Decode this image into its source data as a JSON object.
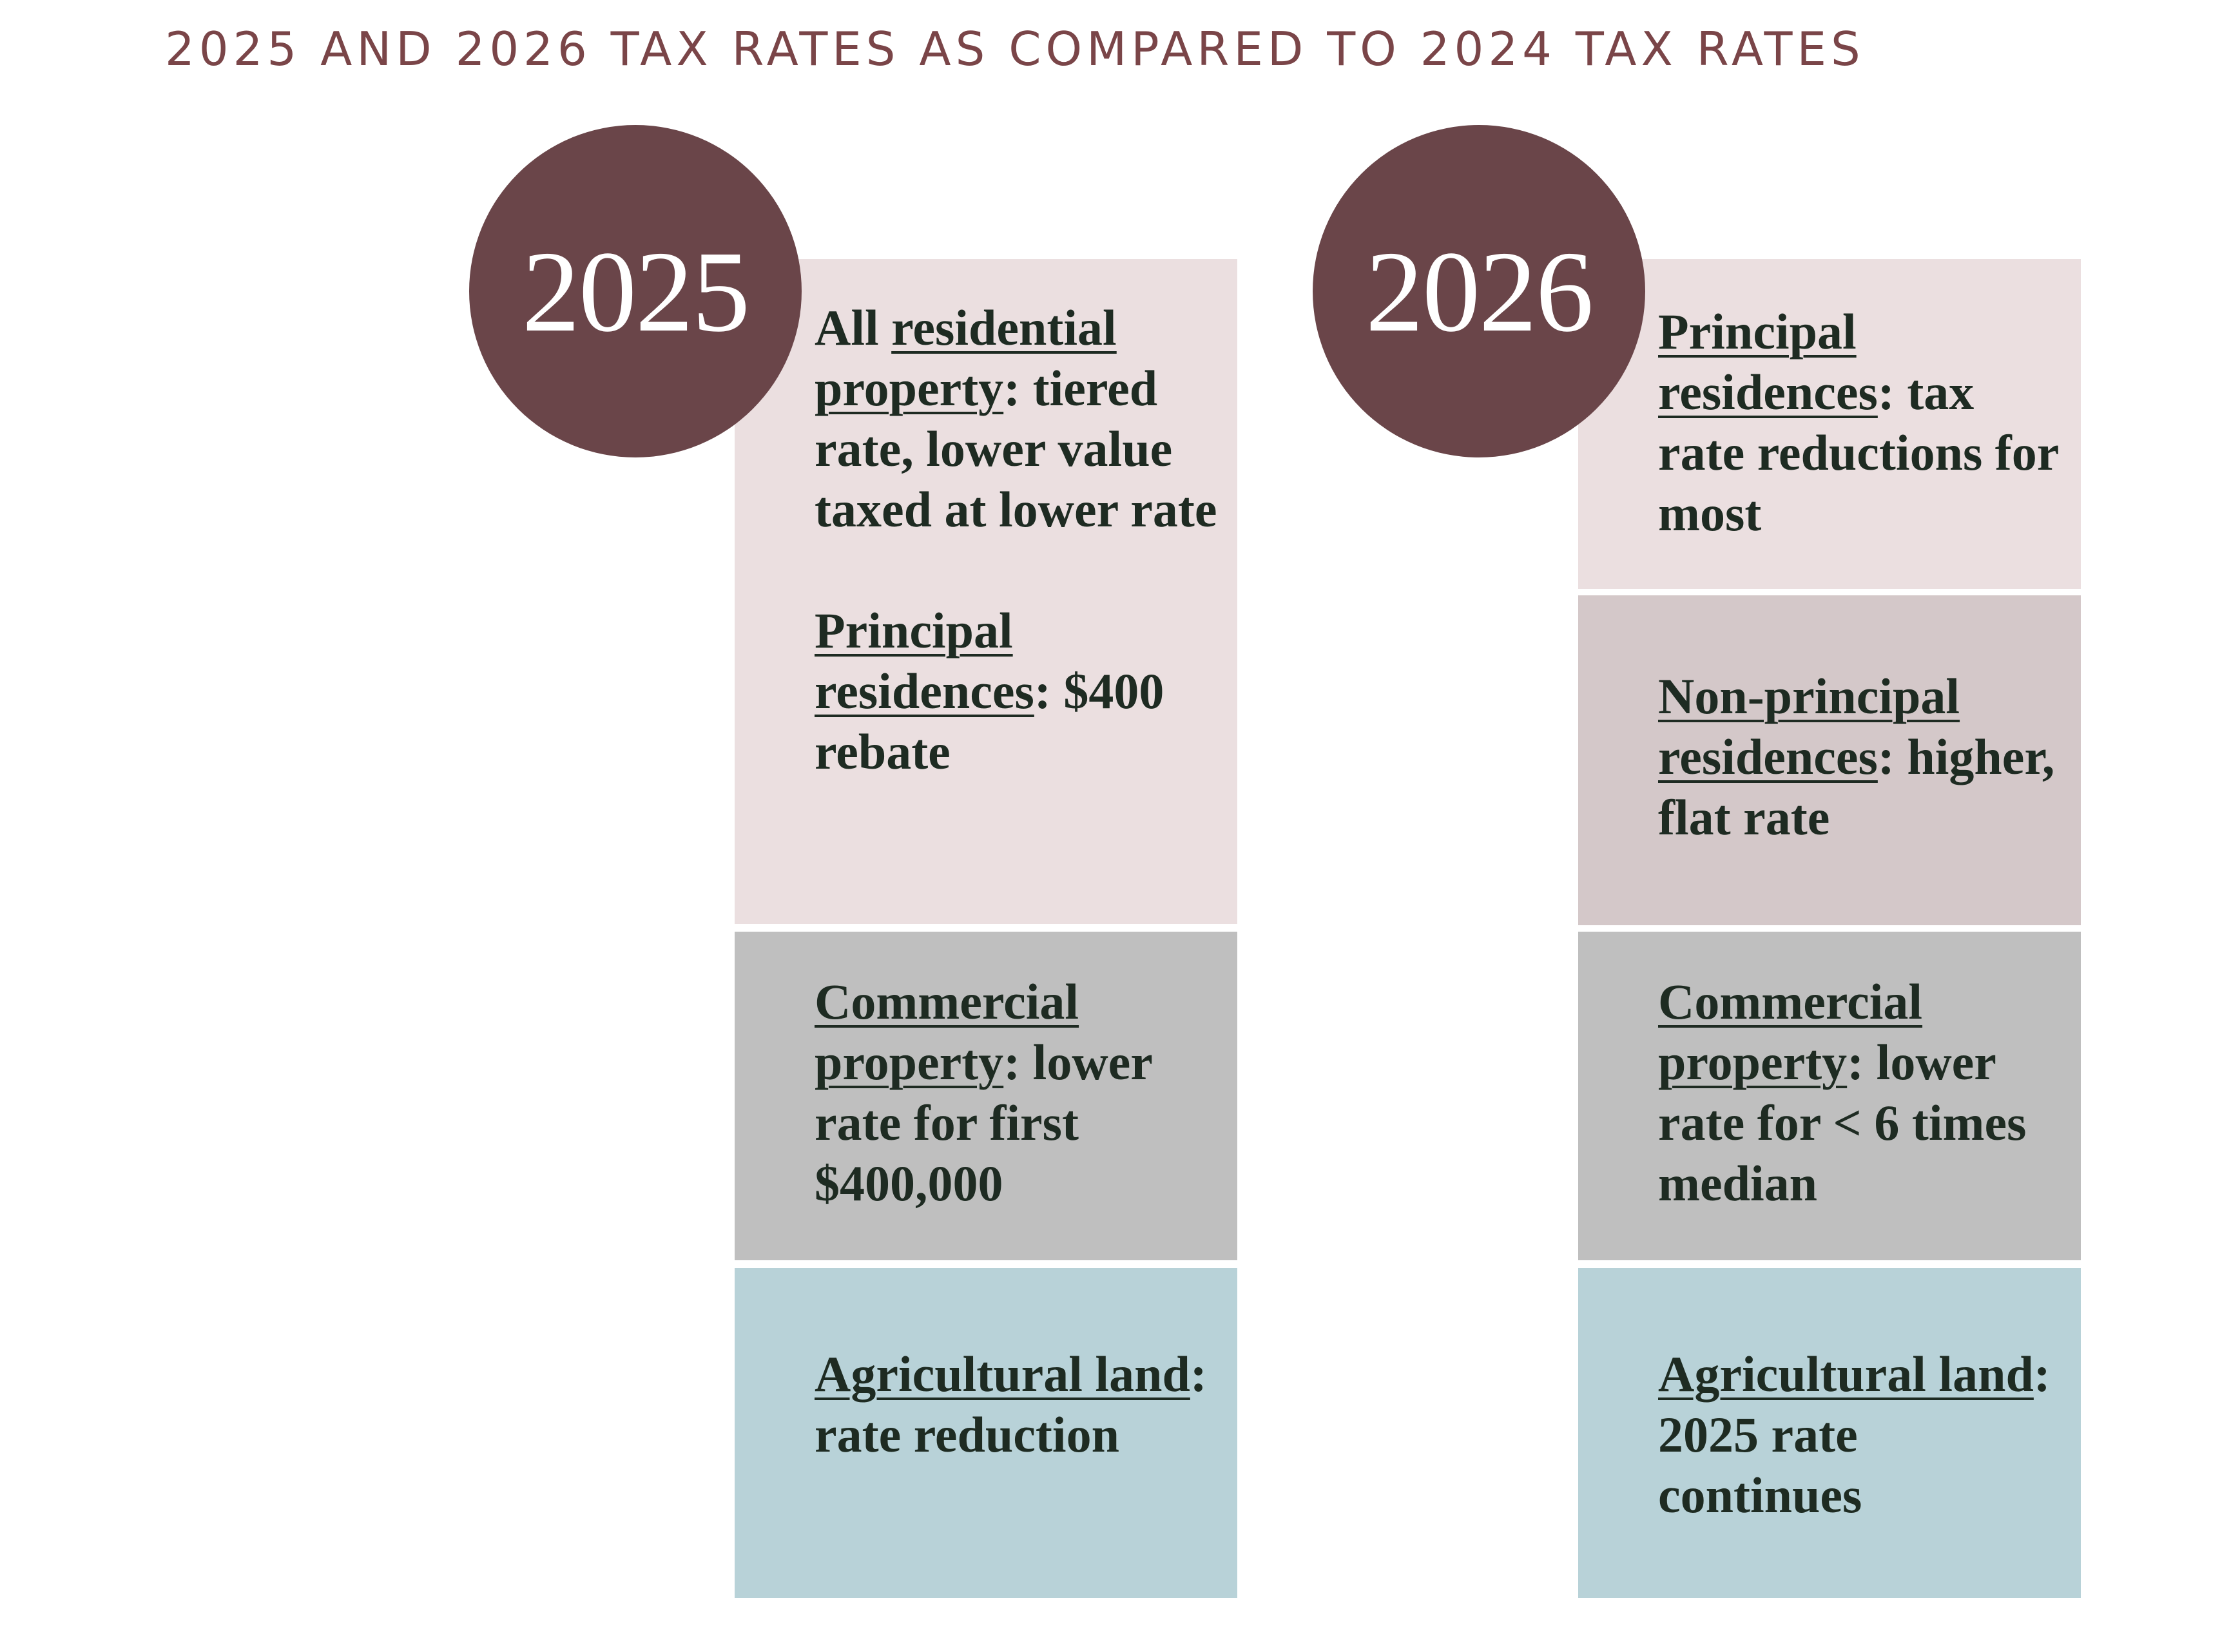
{
  "title": "2025 AND 2026 TAX RATES AS COMPARED TO 2024 TAX RATES",
  "colors": {
    "title": "#7a4548",
    "circle": "#6a4549",
    "residential_box": "#ebdfe0",
    "non_principal_box": "#d4c8c9",
    "commercial_box": "#bfbfbf",
    "agricultural_box": "#b8d2d8",
    "text": "#1e2b22"
  },
  "col2025": {
    "year": "2025",
    "residential": {
      "prefix": "All ",
      "term": "residential property",
      "desc": ": tiered rate, lower value taxed at lower rate"
    },
    "principal": {
      "term": "Principal residences",
      "desc": ": $400 rebate"
    },
    "commercial": {
      "term": "Commercial property",
      "desc": ": lower rate for first $400,000"
    },
    "agricultural": {
      "term": "Agricultural land",
      "desc": ": rate reduction"
    }
  },
  "col2026": {
    "year": "2026",
    "principal": {
      "term": "Principal residences",
      "desc": ": tax rate reductions for most"
    },
    "non_principal": {
      "term": "Non-principal residences",
      "desc": ": higher, flat rate"
    },
    "commercial": {
      "term": "Commercial property",
      "desc": ": lower rate for < 6 times median"
    },
    "agricultural": {
      "term": "Agricultural land",
      "desc": ": 2025 rate continues"
    }
  }
}
